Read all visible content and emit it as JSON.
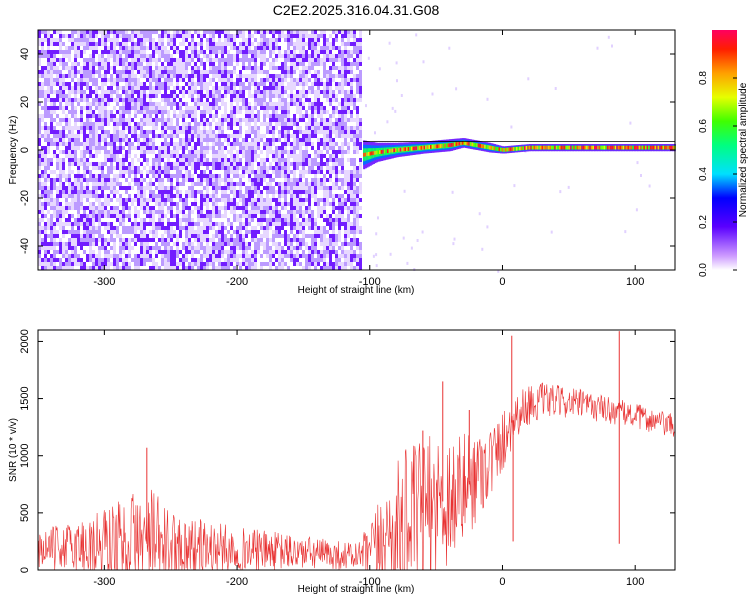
{
  "title": "C2E2.2025.316.04.31.G08",
  "chart_data": [
    {
      "type": "heatmap",
      "xlabel": "Height of straight line (km)",
      "ylabel": "Frequency (Hz)",
      "xlim": [
        -350,
        130
      ],
      "ylim": [
        -50,
        50
      ],
      "x_ticks": [
        -300,
        -200,
        -100,
        0,
        100
      ],
      "y_ticks": [
        -40,
        -20,
        0,
        20,
        40
      ],
      "noise_region_x": [
        -350,
        -105
      ],
      "signal_trace": {
        "x": [
          -105,
          -95,
          -80,
          -60,
          -40,
          -30,
          -20,
          -10,
          0,
          20,
          40,
          60,
          80,
          100,
          130
        ],
        "freq_hz": [
          -2,
          -1,
          0,
          1,
          2,
          3,
          2,
          1,
          0,
          1,
          1,
          1,
          1,
          1,
          1
        ],
        "width_hz": [
          12,
          8,
          6,
          5,
          5,
          4,
          4,
          4,
          3,
          3,
          3,
          3,
          3,
          3,
          3
        ]
      },
      "colorbar": {
        "label": "Normalized spectral amplitude",
        "ticks": [
          "0.0",
          "0.2",
          "0.4",
          "0.6",
          "0.8"
        ],
        "range": [
          0,
          1
        ]
      }
    },
    {
      "type": "line",
      "xlabel": "Height of straight line (km)",
      "ylabel": "SNR (10 * v/v)",
      "xlim": [
        -350,
        130
      ],
      "ylim": [
        0,
        2100
      ],
      "x_ticks": [
        -300,
        -200,
        -100,
        0,
        100
      ],
      "y_ticks": [
        0,
        500,
        1000,
        1500,
        2000
      ],
      "color": "#e83232",
      "envelope": {
        "x": [
          -350,
          -330,
          -300,
          -280,
          -265,
          -250,
          -200,
          -150,
          -110,
          -100,
          -90,
          -75,
          -60,
          -45,
          -30,
          -15,
          -5,
          5,
          10,
          20,
          30,
          40,
          60,
          80,
          100,
          115,
          130
        ],
        "base": [
          180,
          200,
          220,
          230,
          230,
          210,
          180,
          150,
          120,
          150,
          250,
          400,
          500,
          600,
          700,
          900,
          1000,
          1250,
          1350,
          1450,
          1480,
          1480,
          1450,
          1400,
          1350,
          1300,
          1250
        ],
        "amp": [
          180,
          200,
          350,
          450,
          500,
          300,
          200,
          150,
          120,
          250,
          450,
          650,
          650,
          650,
          500,
          400,
          300,
          250,
          200,
          180,
          160,
          140,
          130,
          120,
          110,
          110,
          110
        ]
      },
      "spikes": [
        {
          "x": -268,
          "y": 1070
        },
        {
          "x": -60,
          "y": 1220
        },
        {
          "x": -45,
          "y": 1650
        },
        {
          "x": -25,
          "y": 1400
        },
        {
          "x": 7,
          "y": 2050
        },
        {
          "x": 8,
          "y": 250
        },
        {
          "x": 88,
          "y": 2090
        },
        {
          "x": 88,
          "y": 230
        }
      ]
    }
  ]
}
